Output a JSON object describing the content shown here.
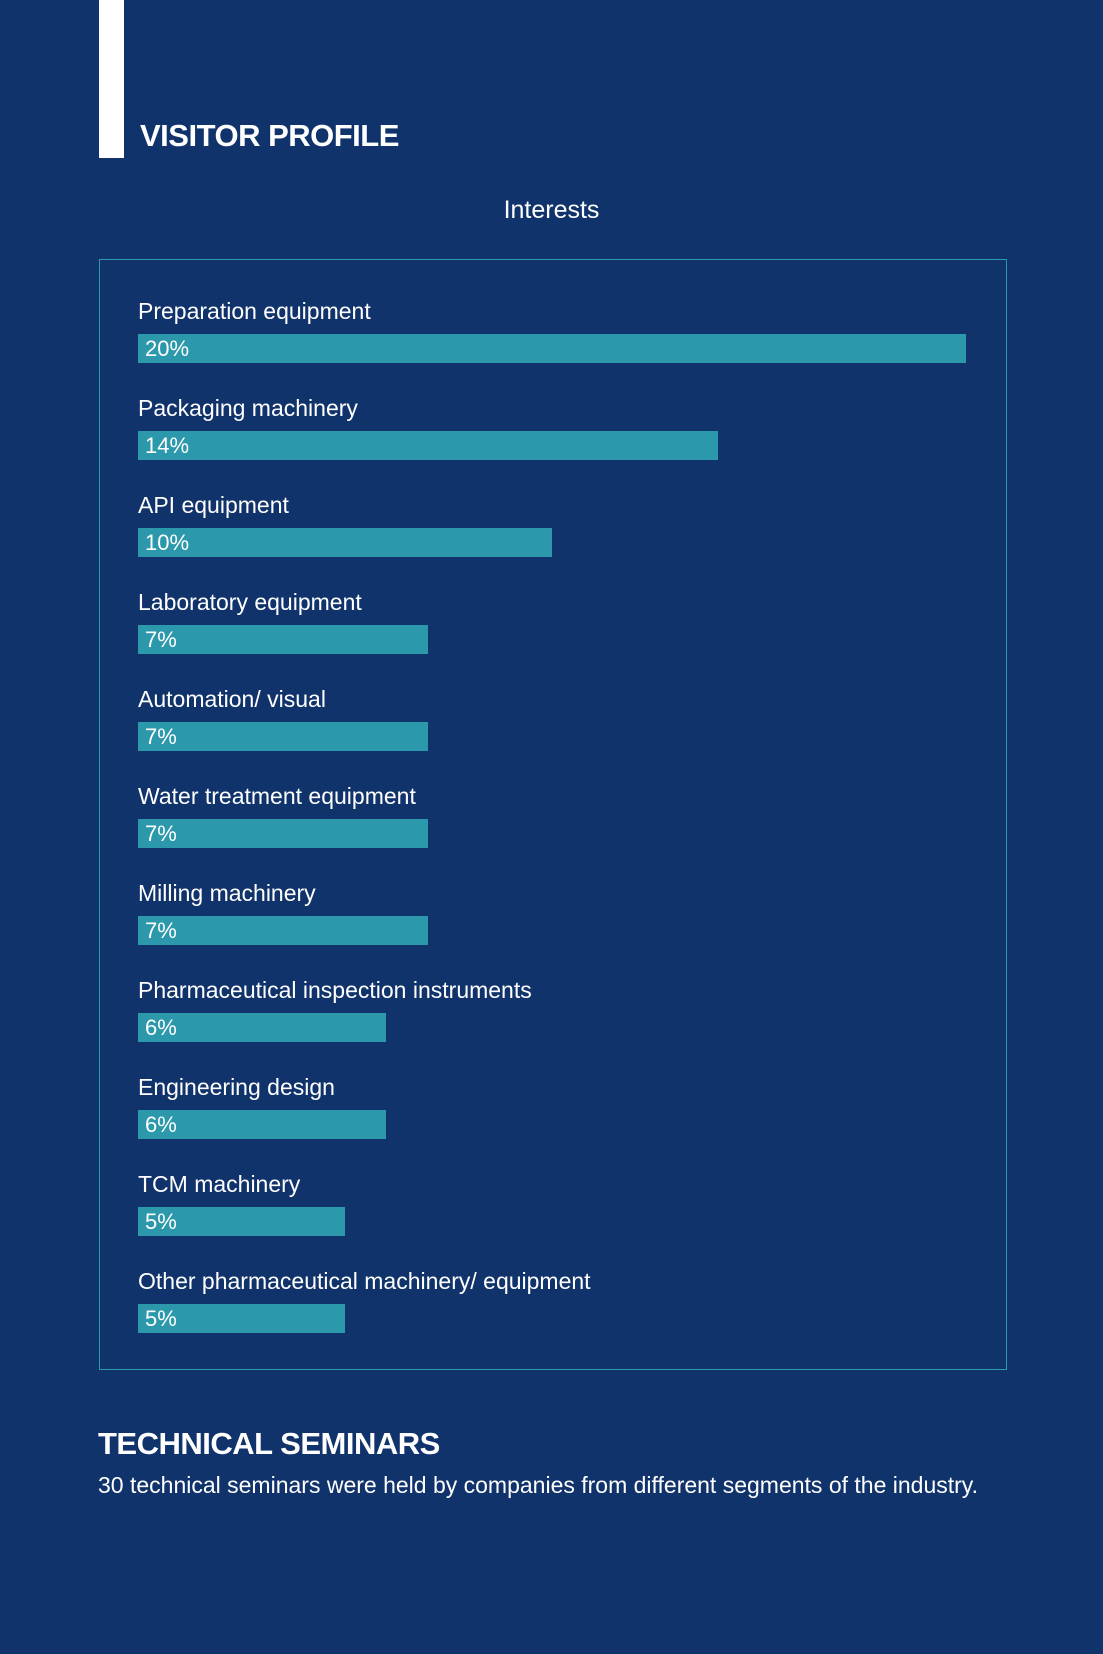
{
  "header": {
    "title": "VISITOR PROFILE"
  },
  "chart_data": {
    "type": "bar",
    "orientation": "horizontal",
    "title": "Interests",
    "categories": [
      "Preparation equipment",
      "Packaging machinery",
      "API equipment",
      "Laboratory equipment",
      "Automation/ visual",
      "Water treatment equipment",
      "Milling machinery",
      "Pharmaceutical inspection instruments",
      "Engineering design",
      "TCM machinery",
      "Other pharmaceutical machinery/ equipment"
    ],
    "values": [
      20,
      14,
      10,
      7,
      7,
      7,
      7,
      6,
      6,
      5,
      5
    ],
    "labels": [
      "20%",
      "14%",
      "10%",
      "7%",
      "7%",
      "7%",
      "7%",
      "6%",
      "6%",
      "5%",
      "5%"
    ],
    "unit": "%",
    "colors": {
      "bar": "#2b98ab",
      "background": "#11336b",
      "text": "#ffffff"
    }
  },
  "seminars": {
    "title": "TECHNICAL SEMINARS",
    "text": "30 technical seminars were held by companies from different segments of the industry."
  }
}
